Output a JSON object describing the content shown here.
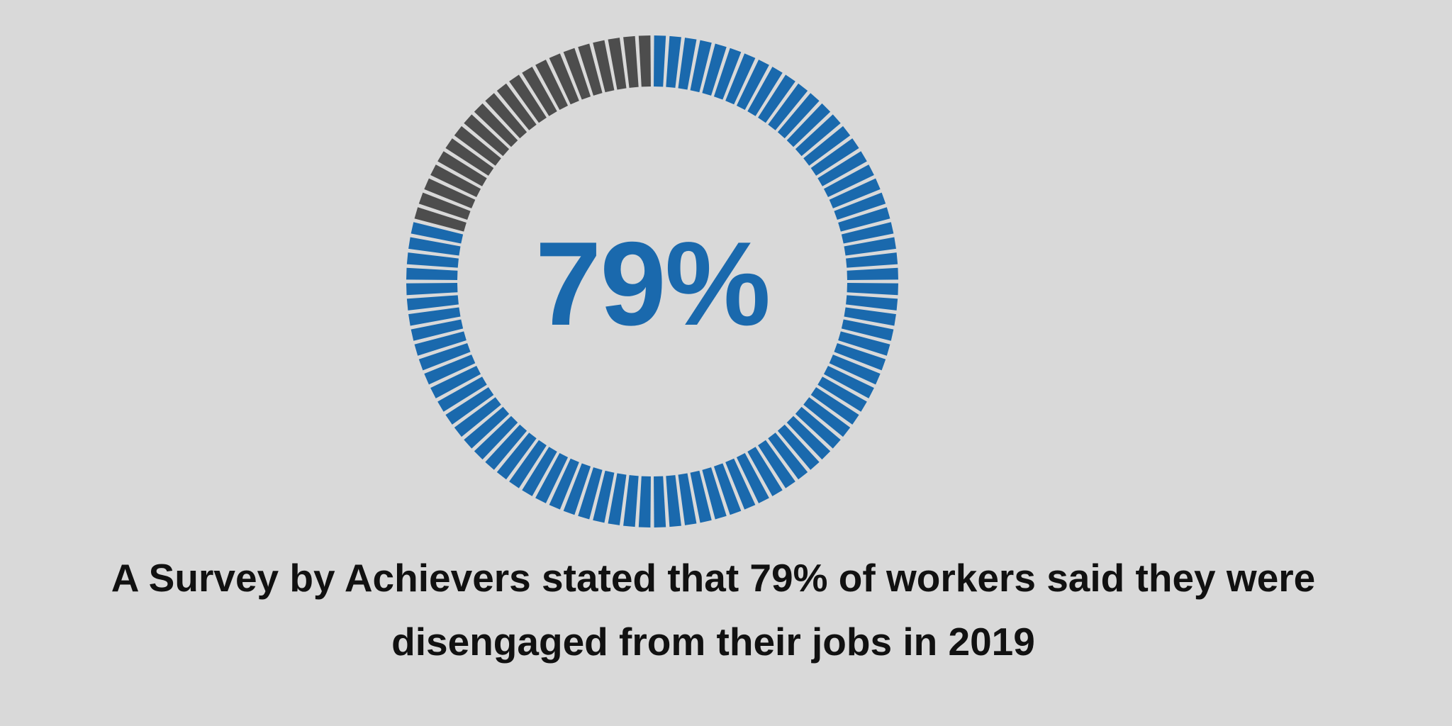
{
  "chart_data": {
    "type": "pie",
    "subtype": "segmented-donut",
    "segments_total": 100,
    "values": [
      79,
      21
    ],
    "center_label": "79%",
    "colors": {
      "filled": "#1a69ad",
      "remaining": "#4d4d4d",
      "background": "#d9d9d9"
    }
  },
  "caption": {
    "line1": "A Survey by Achievers stated that 79% of workers said they were",
    "line2": "disengaged from their jobs in 2019"
  }
}
